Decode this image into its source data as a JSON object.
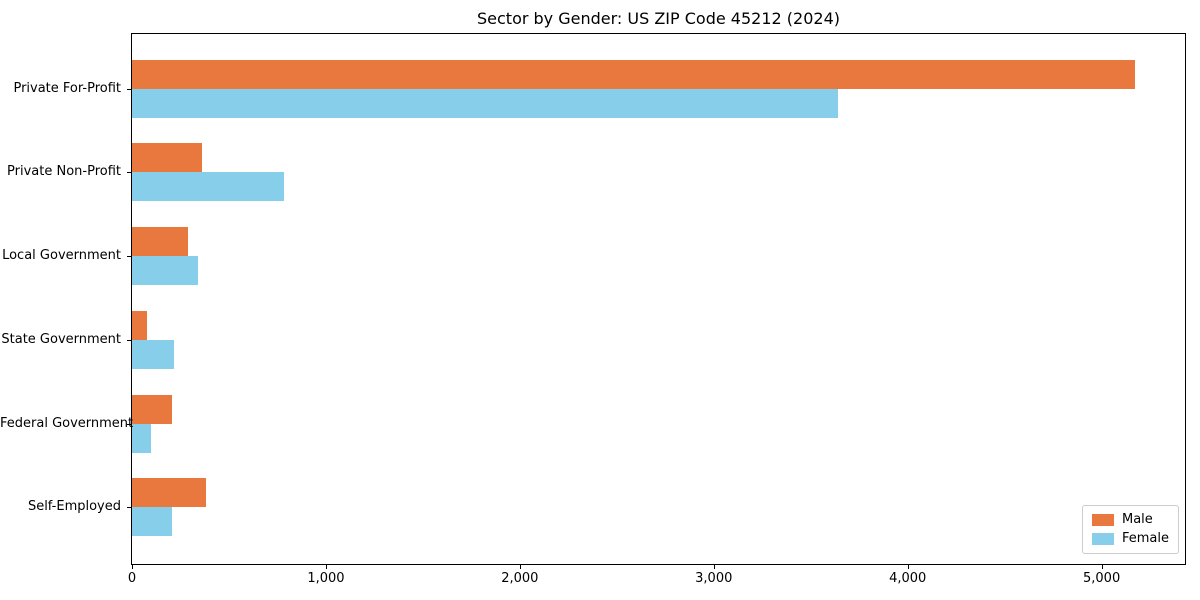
{
  "chart_data": {
    "type": "bar",
    "orientation": "horizontal",
    "title": "Sector by Gender: US ZIP Code 45212 (2024)",
    "categories": [
      "Private For-Profit",
      "Private Non-Profit",
      "Local Government",
      "State Government",
      "Federal Government",
      "Self-Employed"
    ],
    "series": [
      {
        "name": "Male",
        "color": "#e8783e",
        "values": [
          5170,
          360,
          290,
          75,
          205,
          380
        ]
      },
      {
        "name": "Female",
        "color": "#87ceeb",
        "values": [
          3640,
          785,
          340,
          215,
          100,
          205
        ]
      }
    ],
    "xlabel": "",
    "ylabel": "",
    "xlim": [
      0,
      5430
    ],
    "xticks": {
      "values": [
        0,
        1000,
        2000,
        3000,
        4000,
        5000
      ],
      "labels": [
        "0",
        "1,000",
        "2,000",
        "3,000",
        "4,000",
        "5,000"
      ]
    },
    "legend_position": "lower right",
    "grid": false,
    "colors": {
      "male": "#e8783e",
      "female": "#87ceeb",
      "axis": "#000000",
      "legend_border": "#cccccc"
    }
  }
}
